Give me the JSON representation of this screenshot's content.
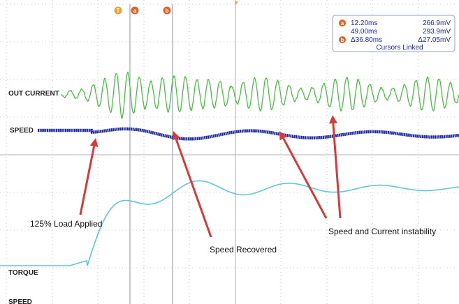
{
  "colors": {
    "out_current": "#44c23e",
    "speed": "#1f2aa6",
    "torque": "#5fc6d8",
    "arrow": "#d83a3a",
    "cursor_line": "#8a8fc8",
    "grid": "#9a9a9a",
    "marker": "#e3621e",
    "trigger_marker": "#f0a030"
  },
  "markers": {
    "trigger": "T",
    "a": "a",
    "b": "b"
  },
  "channels": {
    "out_current": "OUT CURRENT",
    "speed": "SPEED",
    "torque": "TORQUE",
    "speed_bottom": "SPEED"
  },
  "annotations": {
    "load_applied": "125% Load Applied",
    "speed_recovered": "Speed Recovered",
    "instability": "Speed and Current instability"
  },
  "readout": {
    "a_time": "12.20ms",
    "a_value": "266.9mV",
    "b_time": "49.00ms",
    "b_value": "293.9mV",
    "delta_time": "Δ36.80ms",
    "delta_value": "Δ27.05mV",
    "linked": "Cursors Linked"
  }
}
